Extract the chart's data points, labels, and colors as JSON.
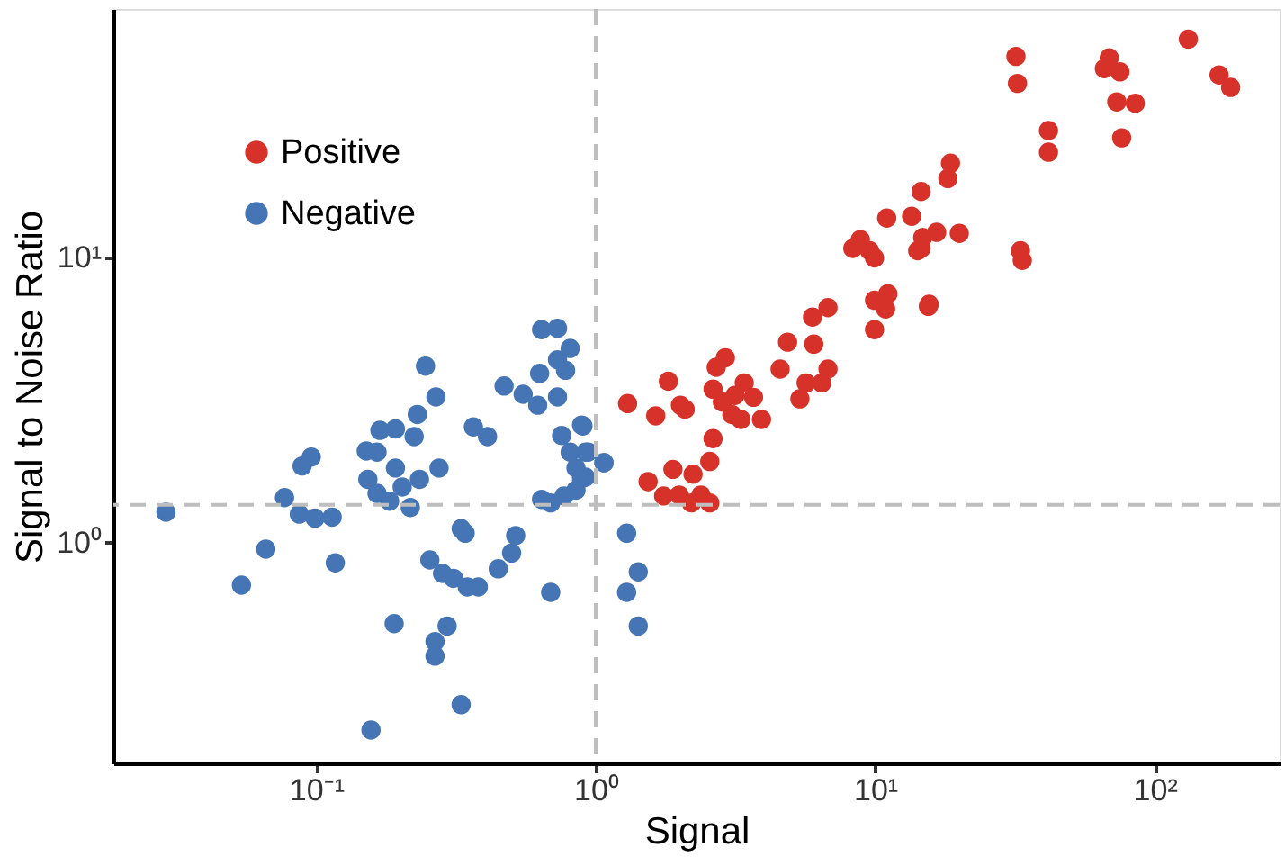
{
  "chart_data": {
    "type": "scatter",
    "xlabel": "Signal",
    "ylabel": "Signal to Noise Ratio",
    "log": "xy",
    "grid": false,
    "legend": "top left",
    "marker": "circle",
    "xlim": [
      0.0188,
      280
    ],
    "ylim": [
      0.168,
      74.8
    ],
    "xticks": [
      {
        "value": 0.1,
        "label": "10⁻¹"
      },
      {
        "value": 1,
        "label": "10⁰"
      },
      {
        "value": 10,
        "label": "10¹"
      },
      {
        "value": 100,
        "label": "10²"
      }
    ],
    "yticks": [
      {
        "value": 1,
        "label": "10⁰"
      },
      {
        "value": 10,
        "label": "10¹"
      }
    ],
    "ref_lines": [
      {
        "axis": "x",
        "value": 1,
        "color": "#bebebe",
        "line_style": "dashed"
      },
      {
        "axis": "y",
        "value": 1.36,
        "color": "#bebebe",
        "line_style": "dashed"
      }
    ],
    "series": [
      {
        "name": "Positive",
        "color": "#d7322a",
        "x": [
          1.3,
          1.64,
          1.82,
          2.01,
          2.09,
          1.54,
          1.89,
          1.75,
          1.99,
          2.23,
          2.38,
          2.56,
          2.2,
          2.56,
          2.63,
          2.7,
          2.91,
          2.63,
          2.84,
          3.15,
          3.4,
          3.67,
          3.31,
          3.92,
          3.07,
          4.57,
          4.86,
          5.38,
          5.66,
          6.44,
          6.78,
          6.03,
          5.97,
          6.78,
          9.95,
          9.95,
          11.1,
          10.9,
          15.5,
          8.32,
          9.55,
          8.85,
          11.0,
          13.5,
          14.6,
          14.8,
          16.6,
          14.6,
          31.9,
          32.3,
          41.7,
          41.7,
          33.1,
          33.6,
          68.8,
          66.1,
          75.1,
          73.2,
          85.3,
          76.2,
          132,
          170,
          187,
          18.6,
          18.2,
          20,
          14.2,
          9.95,
          15.6
        ],
        "values": [
          3.08,
          2.79,
          3.69,
          3.04,
          2.94,
          1.64,
          1.81,
          1.46,
          1.47,
          1.74,
          1.47,
          1.38,
          1.38,
          1.93,
          2.32,
          4.13,
          4.46,
          3.46,
          3.12,
          3.29,
          3.64,
          3.24,
          2.71,
          2.71,
          2.82,
          4.07,
          5.06,
          3.2,
          3.64,
          3.64,
          4.07,
          4.98,
          6.2,
          6.69,
          5.6,
          7.1,
          7.48,
          6.62,
          6.76,
          10.8,
          10.6,
          11.6,
          13.8,
          14.0,
          10.8,
          11.8,
          12.3,
          17.1,
          51,
          41,
          28,
          23.5,
          10.6,
          9.8,
          50.4,
          46.2,
          45.0,
          35.3,
          34.9,
          26.4,
          58.6,
          43.9,
          39.7,
          21.5,
          19.0,
          12.2,
          10.6,
          10.0,
          6.87
        ]
      },
      {
        "name": "Negative",
        "color": "#4575b4",
        "x": [
          0.029,
          0.054,
          0.066,
          0.077,
          0.089,
          0.096,
          0.087,
          0.099,
          0.114,
          0.117,
          0.157,
          0.19,
          0.246,
          0.268,
          0.169,
          0.192,
          0.23,
          0.224,
          0.151,
          0.165,
          0.192,
          0.153,
          0.165,
          0.183,
          0.217,
          0.203,
          0.234,
          0.275,
          0.365,
          0.41,
          0.255,
          0.283,
          0.31,
          0.347,
          0.38,
          0.33,
          0.341,
          0.448,
          0.5,
          0.517,
          0.294,
          0.266,
          0.266,
          0.33,
          0.69,
          0.64,
          0.73,
          0.81,
          0.73,
          0.78,
          0.63,
          0.47,
          0.55,
          0.62,
          0.73,
          0.755,
          0.89,
          0.81,
          0.92,
          1.07,
          0.85,
          0.89,
          0.85,
          0.77,
          0.64,
          0.69,
          0.9,
          0.94,
          1.07,
          0.92,
          1.29,
          1.42,
          1.29,
          1.42
        ],
        "values": [
          1.28,
          0.71,
          0.95,
          1.44,
          1.86,
          2.0,
          1.26,
          1.22,
          1.23,
          0.85,
          0.22,
          0.52,
          4.17,
          3.25,
          2.48,
          2.51,
          2.82,
          2.36,
          2.1,
          2.08,
          1.83,
          1.67,
          1.49,
          1.4,
          1.33,
          1.57,
          1.67,
          1.83,
          2.55,
          2.36,
          0.87,
          0.78,
          0.75,
          0.7,
          0.7,
          1.12,
          1.08,
          0.81,
          0.92,
          1.06,
          0.51,
          0.45,
          0.4,
          0.27,
          0.67,
          5.6,
          5.66,
          4.81,
          4.39,
          4.03,
          3.93,
          3.55,
          3.32,
          3.04,
          3.25,
          2.38,
          2.59,
          2.08,
          2.08,
          1.91,
          1.83,
          1.68,
          1.53,
          1.46,
          1.42,
          1.38,
          2.57,
          2.08,
          1.91,
          1.7,
          1.08,
          0.79,
          0.67,
          0.51
        ]
      }
    ]
  }
}
